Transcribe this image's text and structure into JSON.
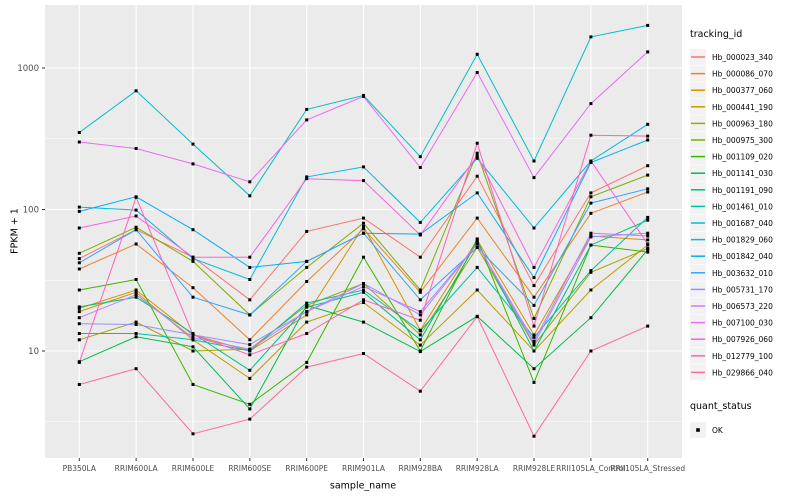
{
  "figure": {
    "y_axis_title": "FPKM + 1",
    "x_axis_title": "sample_name",
    "legend_tracking_title": "tracking_id",
    "legend_quant_title": "quant_status",
    "quant_status_value": "OK"
  },
  "colors": {
    "panel_bg": "#EBEBEB",
    "gridline": "#FFFFFF",
    "legend_key_bg": "#F2F2F2",
    "tick_label": "#4D4D4D",
    "tick_mark": "#333333",
    "marker": "#000000"
  },
  "chart_data": {
    "type": "line",
    "title": "",
    "xlabel": "sample_name",
    "ylabel": "FPKM + 1",
    "y_scale": "log10",
    "ylim": [
      1.75,
      2790
    ],
    "y_major_ticks": [
      1000,
      100,
      10
    ],
    "y_minor_gridlines": [
      316.23,
      31.623,
      3.1623
    ],
    "grid": "major-and-minor, white on grey panel",
    "legend_position": "right",
    "legend_title": "tracking_id",
    "point_legend": {
      "title": "quant_status",
      "label": "OK",
      "shape": "black-square"
    },
    "categories": [
      "PB350LA",
      "RRIM600LA",
      "RRIM600LE",
      "RRIM600SE",
      "RRIM600PE",
      "RRIM901LA",
      "RRIM928BA",
      "RRIM928LA",
      "RRIM928LE",
      "RRII105LA_Control",
      "RRII105LA_Stressed"
    ],
    "series": [
      {
        "name": "Hb_000023_340",
        "color": "#F8766D",
        "values": [
          45,
          72,
          46,
          23,
          70,
          87,
          46,
          172,
          29,
          131,
          204
        ]
      },
      {
        "name": "Hb_000086_070",
        "color": "#EA8331",
        "values": [
          38,
          57,
          28,
          12,
          31,
          73,
          26,
          87,
          24,
          94,
          133
        ]
      },
      {
        "name": "Hb_000377_060",
        "color": "#D89000",
        "values": [
          20,
          27,
          13,
          10,
          18,
          76,
          14,
          61,
          13,
          65,
          61
        ]
      },
      {
        "name": "Hb_000441_190",
        "color": "#C09B00",
        "values": [
          19,
          26,
          12,
          6.4,
          16,
          22,
          11,
          27,
          10,
          27,
          56
        ]
      },
      {
        "name": "Hb_000963_180",
        "color": "#A3A500",
        "values": [
          12,
          16,
          10,
          10.3,
          21,
          30,
          13,
          54,
          11,
          36,
          53
        ]
      },
      {
        "name": "Hb_000975_300",
        "color": "#7CAE00",
        "values": [
          49,
          75,
          43,
          18,
          39,
          80,
          27,
          250,
          17,
          123,
          175
        ]
      },
      {
        "name": "Hb_001109_020",
        "color": "#39B600",
        "values": [
          27,
          32,
          5.8,
          4.2,
          8.3,
          46,
          10,
          62,
          6,
          56,
          50
        ]
      },
      {
        "name": "Hb_001141_030",
        "color": "#00BB4E",
        "values": [
          8.4,
          12.6,
          10.7,
          3.9,
          21,
          16,
          9.9,
          17.6,
          7.5,
          17.2,
          52
        ]
      },
      {
        "name": "Hb_001191_090",
        "color": "#00BF7D",
        "values": [
          20.5,
          24,
          13.3,
          7.3,
          20.4,
          26,
          12,
          59,
          10,
          56,
          84
        ]
      },
      {
        "name": "Hb_001461_010",
        "color": "#00C1A3",
        "values": [
          13.3,
          13.3,
          12,
          10,
          21.8,
          27,
          13.9,
          39,
          12.5,
          37,
          88
        ]
      },
      {
        "name": "Hb_001687_040",
        "color": "#00BFC4",
        "values": [
          350,
          690,
          290,
          125,
          510,
          640,
          236,
          1250,
          220,
          1660,
          2000
        ]
      },
      {
        "name": "Hb_001829_060",
        "color": "#00BAE0",
        "values": [
          104,
          99,
          45,
          32,
          170,
          200,
          81,
          230,
          74,
          220,
          400
        ]
      },
      {
        "name": "Hb_001842_040",
        "color": "#00B0F6",
        "values": [
          97,
          123,
          72,
          39,
          43,
          68,
          67,
          131,
          33,
          215,
          310
        ]
      },
      {
        "name": "Hb_003632_010",
        "color": "#35A2FF",
        "values": [
          42,
          72,
          24,
          18,
          43,
          68,
          23,
          54,
          21,
          111,
          140
        ]
      },
      {
        "name": "Hb_005731_170",
        "color": "#9590FF",
        "values": [
          15.6,
          15.4,
          13,
          11.1,
          19,
          30,
          18,
          57,
          11.2,
          64,
          68
        ]
      },
      {
        "name": "Hb_006573_220",
        "color": "#C77CFF",
        "values": [
          17.2,
          25,
          12.4,
          10.3,
          19,
          28.5,
          19,
          57,
          11.7,
          68,
          65
        ]
      },
      {
        "name": "Hb_007100_030",
        "color": "#E76BF3",
        "values": [
          300,
          270,
          210,
          157,
          430,
          630,
          198,
          930,
          168,
          560,
          1300
        ]
      },
      {
        "name": "Hb_007926_060",
        "color": "#FA62DB",
        "values": [
          74,
          90,
          46,
          46,
          165,
          160,
          66,
          240,
          39,
          220,
          57
        ]
      },
      {
        "name": "Hb_012779_100",
        "color": "#FF62BC",
        "values": [
          8.3,
          122,
          13,
          9.4,
          13.3,
          23,
          16.5,
          294,
          15,
          335,
          330
        ]
      },
      {
        "name": "Hb_029866_040",
        "color": "#FF6A98",
        "values": [
          5.8,
          7.5,
          2.6,
          3.3,
          7.7,
          9.6,
          5.2,
          17.5,
          2.5,
          10,
          15
        ]
      }
    ]
  }
}
